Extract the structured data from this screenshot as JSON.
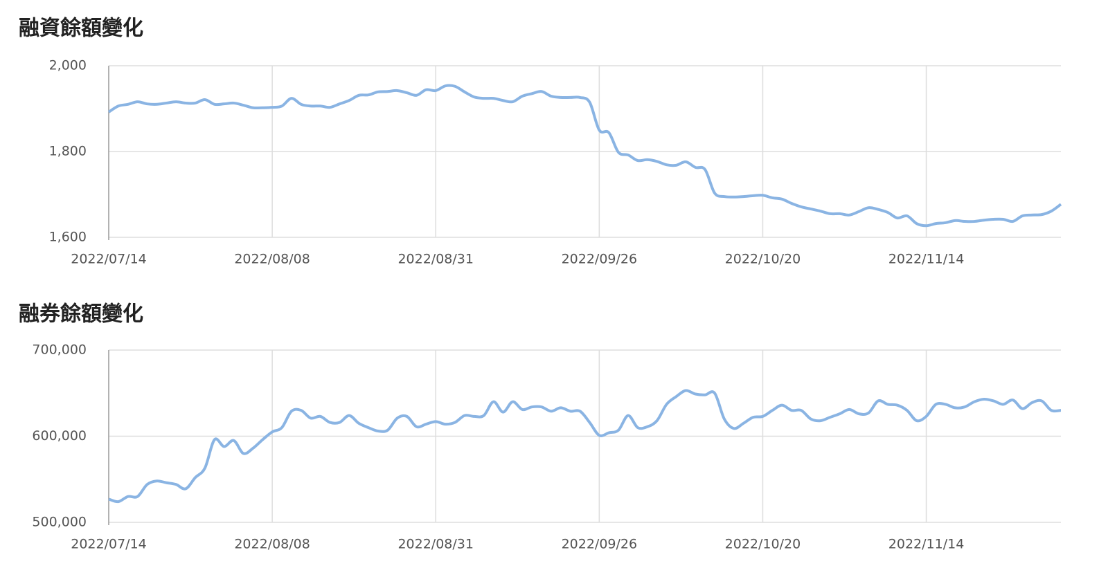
{
  "chart_data": [
    {
      "type": "line",
      "title": "融資餘額變化",
      "categories": [
        "2022/07/14",
        null,
        null,
        null,
        null,
        null,
        null,
        null,
        null,
        null,
        null,
        null,
        null,
        null,
        null,
        null,
        null,
        "2022/08/08",
        null,
        null,
        null,
        null,
        null,
        null,
        null,
        null,
        null,
        null,
        null,
        null,
        null,
        null,
        null,
        null,
        "2022/08/31",
        null,
        null,
        null,
        null,
        null,
        null,
        null,
        null,
        null,
        null,
        null,
        null,
        null,
        null,
        null,
        null,
        "2022/09/26",
        null,
        null,
        null,
        null,
        null,
        null,
        null,
        null,
        null,
        null,
        null,
        null,
        null,
        null,
        null,
        null,
        "2022/10/20",
        null,
        null,
        null,
        null,
        null,
        null,
        null,
        null,
        null,
        null,
        null,
        null,
        null,
        null,
        null,
        null,
        "2022/11/14",
        null,
        null,
        null,
        null,
        null,
        null,
        null,
        null,
        null,
        null,
        null,
        null,
        null,
        null
      ],
      "series": [
        {
          "color": "#8ab4e3",
          "values": [
            1892,
            1906,
            1910,
            1916,
            1911,
            1910,
            1913,
            1916,
            1913,
            1913,
            1921,
            1910,
            1911,
            1913,
            1908,
            1902,
            1902,
            1903,
            1906,
            1924,
            1910,
            1906,
            1906,
            1903,
            1911,
            1919,
            1931,
            1932,
            1939,
            1940,
            1942,
            1937,
            1931,
            1944,
            1942,
            1953,
            1952,
            1939,
            1927,
            1924,
            1924,
            1919,
            1916,
            1929,
            1935,
            1940,
            1929,
            1926,
            1926,
            1926,
            1915,
            1850,
            1844,
            1798,
            1792,
            1779,
            1781,
            1777,
            1769,
            1768,
            1776,
            1763,
            1758,
            1703,
            1695,
            1694,
            1695,
            1697,
            1698,
            1692,
            1689,
            1679,
            1671,
            1666,
            1661,
            1655,
            1655,
            1652,
            1660,
            1669,
            1665,
            1658,
            1645,
            1650,
            1632,
            1627,
            1632,
            1634,
            1639,
            1637,
            1637,
            1640,
            1642,
            1642,
            1637,
            1650,
            1652,
            1653,
            1661,
            1677
          ]
        }
      ],
      "ylim": [
        1600,
        2000
      ],
      "yticks": [
        {
          "value": 1600,
          "label": "1,600"
        },
        {
          "value": 1800,
          "label": "1,800"
        },
        {
          "value": 2000,
          "label": "2,000"
        }
      ],
      "grid": true
    },
    {
      "type": "line",
      "title": "融券餘額變化",
      "categories": [
        "2022/07/14",
        null,
        null,
        null,
        null,
        null,
        null,
        null,
        null,
        null,
        null,
        null,
        null,
        null,
        null,
        null,
        null,
        "2022/08/08",
        null,
        null,
        null,
        null,
        null,
        null,
        null,
        null,
        null,
        null,
        null,
        null,
        null,
        null,
        null,
        null,
        "2022/08/31",
        null,
        null,
        null,
        null,
        null,
        null,
        null,
        null,
        null,
        null,
        null,
        null,
        null,
        null,
        null,
        null,
        "2022/09/26",
        null,
        null,
        null,
        null,
        null,
        null,
        null,
        null,
        null,
        null,
        null,
        null,
        null,
        null,
        null,
        null,
        "2022/10/20",
        null,
        null,
        null,
        null,
        null,
        null,
        null,
        null,
        null,
        null,
        null,
        null,
        null,
        null,
        null,
        null,
        "2022/11/14",
        null,
        null,
        null,
        null,
        null,
        null,
        null,
        null,
        null,
        null,
        null,
        null,
        null,
        null
      ],
      "series": [
        {
          "color": "#8ab4e3",
          "values": [
            527000,
            524000,
            530000,
            530000,
            544000,
            548000,
            546000,
            544000,
            539000,
            552000,
            563000,
            596000,
            588000,
            595000,
            580000,
            586000,
            596000,
            605000,
            610000,
            629000,
            630000,
            621000,
            623000,
            616000,
            616000,
            624000,
            615000,
            610000,
            606000,
            607000,
            621000,
            623000,
            611000,
            614000,
            617000,
            614000,
            616000,
            624000,
            623000,
            624000,
            640000,
            628000,
            640000,
            631000,
            634000,
            634000,
            629000,
            633000,
            629000,
            629000,
            616000,
            601000,
            604000,
            607000,
            624000,
            610000,
            611000,
            618000,
            637000,
            646000,
            653000,
            649000,
            648000,
            650000,
            620000,
            609000,
            615000,
            622000,
            623000,
            630000,
            636000,
            630000,
            630000,
            620000,
            618000,
            622000,
            626000,
            631000,
            626000,
            627000,
            641000,
            637000,
            636000,
            630000,
            618000,
            623000,
            637000,
            637000,
            633000,
            634000,
            640000,
            643000,
            641000,
            637000,
            642000,
            632000,
            639000,
            641000,
            630000,
            630000
          ]
        }
      ],
      "ylim": [
        500000,
        700000
      ],
      "yticks": [
        {
          "value": 500000,
          "label": "500,000"
        },
        {
          "value": 600000,
          "label": "600,000"
        },
        {
          "value": 700000,
          "label": "700,000"
        }
      ],
      "grid": true
    }
  ]
}
